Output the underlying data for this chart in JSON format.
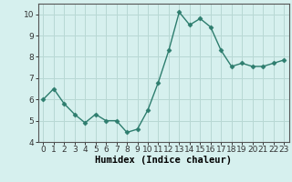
{
  "x": [
    0,
    1,
    2,
    3,
    4,
    5,
    6,
    7,
    8,
    9,
    10,
    11,
    12,
    13,
    14,
    15,
    16,
    17,
    18,
    19,
    20,
    21,
    22,
    23
  ],
  "y": [
    6.0,
    6.5,
    5.8,
    5.3,
    4.9,
    5.3,
    5.0,
    5.0,
    4.45,
    4.6,
    5.5,
    6.8,
    8.3,
    10.1,
    9.5,
    9.8,
    9.4,
    8.3,
    7.55,
    7.7,
    7.55,
    7.55,
    7.7,
    7.85
  ],
  "line_color": "#2d7d6e",
  "marker": "D",
  "marker_size": 2.5,
  "bg_color": "#d6f0ee",
  "grid_color": "#b8d8d4",
  "xlabel": "Humidex (Indice chaleur)",
  "ylim": [
    4,
    10.5
  ],
  "xlim": [
    -0.5,
    23.5
  ],
  "yticks": [
    4,
    5,
    6,
    7,
    8,
    9,
    10
  ],
  "xticks": [
    0,
    1,
    2,
    3,
    4,
    5,
    6,
    7,
    8,
    9,
    10,
    11,
    12,
    13,
    14,
    15,
    16,
    17,
    18,
    19,
    20,
    21,
    22,
    23
  ],
  "tick_fontsize": 6.5,
  "xlabel_fontsize": 7.5
}
